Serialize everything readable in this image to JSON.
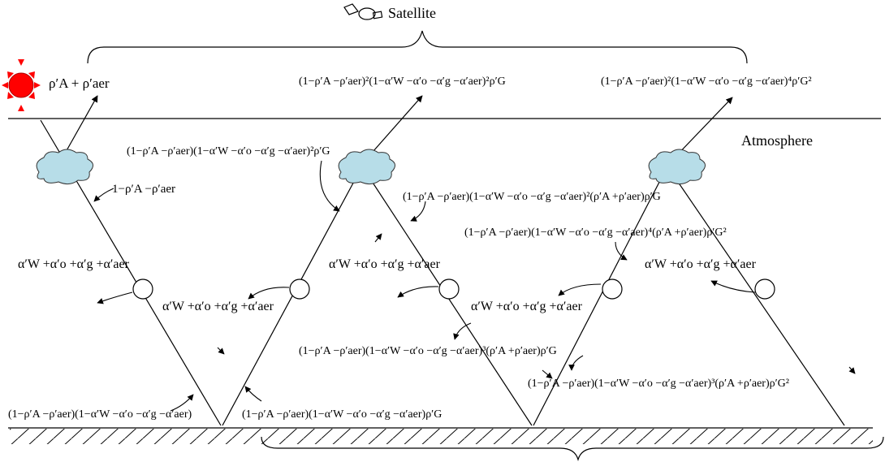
{
  "labels": {
    "satellite": "Satellite",
    "atmosphere": "Atmosphere"
  },
  "colors": {
    "sun": "#ff0000",
    "cloud": "#b7dde8",
    "ink": "#000000"
  },
  "icons": {
    "satellite": "satellite-icon",
    "sun": "sun-icon",
    "cloud": "cloud-icon"
  },
  "formulas": {
    "f_rho_sum": "ρ′A + ρ′aer",
    "f_top_2": "(1−ρ′A −ρ′aer)²(1−α′W −α′o −α′g −α′aer)²ρ′G",
    "f_top_3": "(1−ρ′A −ρ′aer)²(1−α′W −α′o −α′g −α′aer)⁴ρ′G²",
    "f_mid_left": "(1−ρ′A −ρ′aer)(1−α′W −α′o −α′g −α′aer)²ρ′G",
    "f_trans_left": "1−ρ′A −ρ′aer",
    "f_abs_left": "α′W +α′o +α′g +α′aer",
    "f_abs_mid1": "α′W +α′o +α′g +α′aer",
    "f_abs_mid2": "α′W +α′o +α′g +α′aer",
    "f_abs_mid3": "α′W +α′o +α′g +α′aer",
    "f_abs_right": "α′W +α′o +α′g +α′aer",
    "f_mid_r1": "(1−ρ′A −ρ′aer)(1−α′W −α′o −α′g −α′aer)²(ρ′A +ρ′aer)ρ′G",
    "f_mid_r2": "(1−ρ′A −ρ′aer)(1−α′W −α′o −α′g −α′aer)⁴(ρ′A +ρ′aer)ρ′G²",
    "f_low_mid": "(1−ρ′A −ρ′aer)(1−α′W −α′o −α′g −α′aer)³(ρ′A +ρ′aer)ρ′G",
    "f_low_right": "(1−ρ′A −ρ′aer)(1−α′W −α′o −α′g −α′aer)³(ρ′A +ρ′aer)ρ′G²",
    "f_ground_left": "(1−ρ′A −ρ′aer)(1−α′W −α′o −α′g −α′aer)",
    "f_ground_mid": "(1−ρ′A −ρ′aer)(1−α′W −α′o −α′g −α′aer)ρ′G"
  }
}
